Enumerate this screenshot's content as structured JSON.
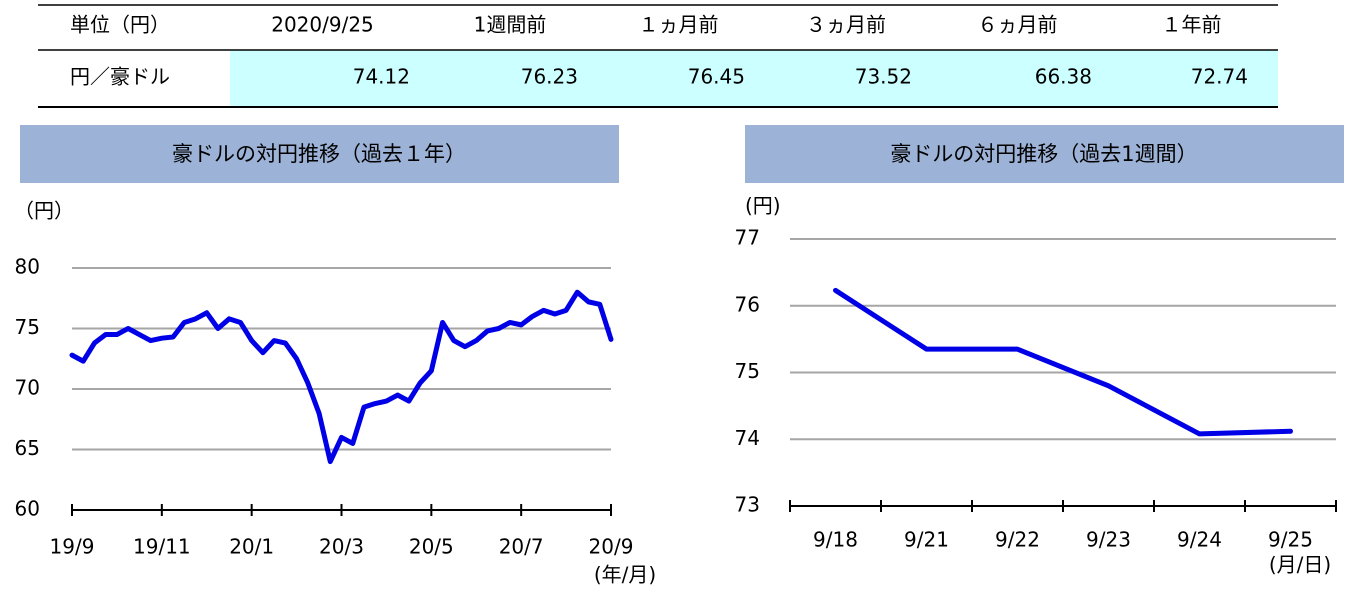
{
  "table": {
    "header": [
      "単位（円）",
      "2020/9/25",
      "1週間前",
      "１ヵ月前",
      "３ヵ月前",
      "６ヵ月前",
      "１年前"
    ],
    "rows": [
      [
        "円／豪ドル",
        "74.12",
        "76.23",
        "76.45",
        "73.52",
        "66.38",
        "72.74"
      ]
    ]
  },
  "chart_data": [
    {
      "type": "line",
      "title": "豪ドルの対円推移（過去１年）",
      "y_label": "（円）",
      "x_label": "(年/月)",
      "categories": [
        "19/9",
        null,
        null,
        null,
        null,
        null,
        null,
        null,
        "19/11",
        null,
        null,
        null,
        null,
        null,
        null,
        null,
        "20/1",
        null,
        null,
        null,
        null,
        null,
        null,
        null,
        "20/3",
        null,
        null,
        null,
        null,
        null,
        null,
        null,
        "20/5",
        null,
        null,
        null,
        null,
        null,
        null,
        null,
        "20/7",
        null,
        null,
        null,
        null,
        null,
        null,
        null,
        "20/9"
      ],
      "values": [
        72.8,
        72.3,
        73.8,
        74.5,
        74.5,
        75.0,
        74.5,
        74.0,
        74.2,
        74.3,
        75.5,
        75.8,
        76.3,
        75.0,
        75.8,
        75.5,
        74.0,
        73.0,
        74.0,
        73.8,
        72.5,
        70.5,
        68.0,
        64.0,
        66.0,
        65.5,
        68.5,
        68.8,
        69.0,
        69.5,
        69.0,
        70.5,
        71.5,
        75.5,
        74.0,
        73.5,
        74.0,
        74.8,
        75.0,
        75.5,
        75.3,
        76.0,
        76.5,
        76.2,
        76.5,
        78.0,
        77.2,
        77.0,
        74.1
      ],
      "color": "#0000e6",
      "ylim": [
        60,
        80
      ],
      "yticks": [
        60,
        65,
        70,
        75,
        80
      ],
      "grid": true
    },
    {
      "type": "line",
      "title": "豪ドルの対円推移（過去1週間）",
      "y_label": "(円)",
      "x_label": "(月/日)",
      "categories": [
        "9/18",
        "9/21",
        "9/22",
        "9/23",
        "9/24",
        "9/25"
      ],
      "values": [
        76.23,
        75.35,
        75.35,
        74.8,
        74.08,
        74.12
      ],
      "color": "#0000e6",
      "ylim": [
        73,
        77
      ],
      "yticks": [
        73,
        74,
        75,
        76,
        77
      ],
      "grid": true
    }
  ]
}
